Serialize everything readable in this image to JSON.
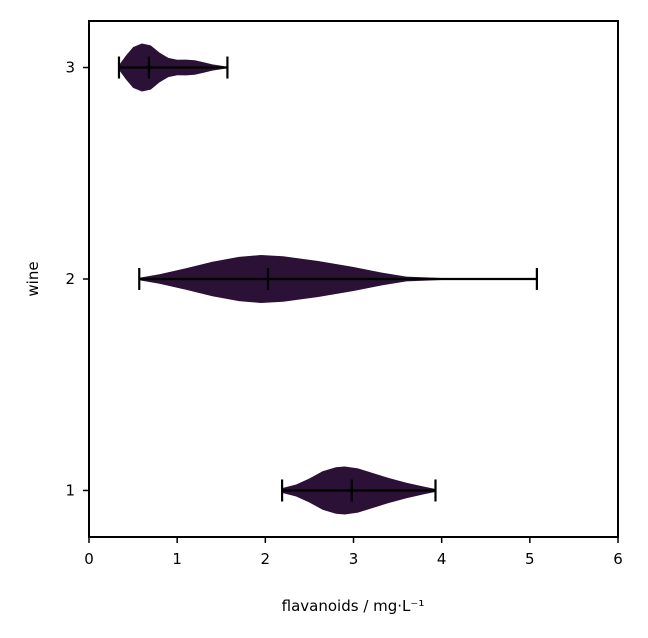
{
  "chart_data": {
    "type": "violin",
    "orientation": "horizontal",
    "xlabel": "flavanoids / mg·L⁻¹",
    "ylabel": "wine",
    "xlim": [
      0,
      6
    ],
    "ylim": [
      0.78,
      3.22
    ],
    "xticks": [
      0,
      1,
      2,
      3,
      4,
      5,
      6
    ],
    "yticks": [
      1,
      2,
      3
    ],
    "grid": false,
    "colors": {
      "violin": "#2a1135",
      "whisker": "#000000",
      "axis": "#000000"
    },
    "categories": [
      "1",
      "2",
      "3"
    ],
    "series": [
      {
        "category": 1,
        "min": 2.19,
        "median": 2.98,
        "max": 3.93,
        "density": [
          [
            2.19,
            0.1
          ],
          [
            2.35,
            0.25
          ],
          [
            2.5,
            0.5
          ],
          [
            2.65,
            0.8
          ],
          [
            2.8,
            0.97
          ],
          [
            2.9,
            1.0
          ],
          [
            3.05,
            0.92
          ],
          [
            3.2,
            0.75
          ],
          [
            3.4,
            0.52
          ],
          [
            3.6,
            0.32
          ],
          [
            3.8,
            0.16
          ],
          [
            3.93,
            0.06
          ]
        ]
      },
      {
        "category": 2,
        "min": 0.57,
        "median": 2.03,
        "max": 5.08,
        "density": [
          [
            0.57,
            0.05
          ],
          [
            0.8,
            0.2
          ],
          [
            1.1,
            0.45
          ],
          [
            1.4,
            0.72
          ],
          [
            1.7,
            0.92
          ],
          [
            1.95,
            1.0
          ],
          [
            2.2,
            0.95
          ],
          [
            2.6,
            0.75
          ],
          [
            3.0,
            0.5
          ],
          [
            3.3,
            0.28
          ],
          [
            3.6,
            0.1
          ],
          [
            4.0,
            0.04
          ],
          [
            4.5,
            0.02
          ],
          [
            5.08,
            0.01
          ]
        ]
      },
      {
        "category": 3,
        "min": 0.34,
        "median": 0.68,
        "max": 1.57,
        "density": [
          [
            0.34,
            0.1
          ],
          [
            0.42,
            0.5
          ],
          [
            0.5,
            0.85
          ],
          [
            0.6,
            1.0
          ],
          [
            0.7,
            0.92
          ],
          [
            0.8,
            0.62
          ],
          [
            0.9,
            0.4
          ],
          [
            1.0,
            0.32
          ],
          [
            1.1,
            0.33
          ],
          [
            1.2,
            0.3
          ],
          [
            1.3,
            0.22
          ],
          [
            1.4,
            0.13
          ],
          [
            1.5,
            0.07
          ],
          [
            1.57,
            0.03
          ]
        ]
      }
    ]
  }
}
